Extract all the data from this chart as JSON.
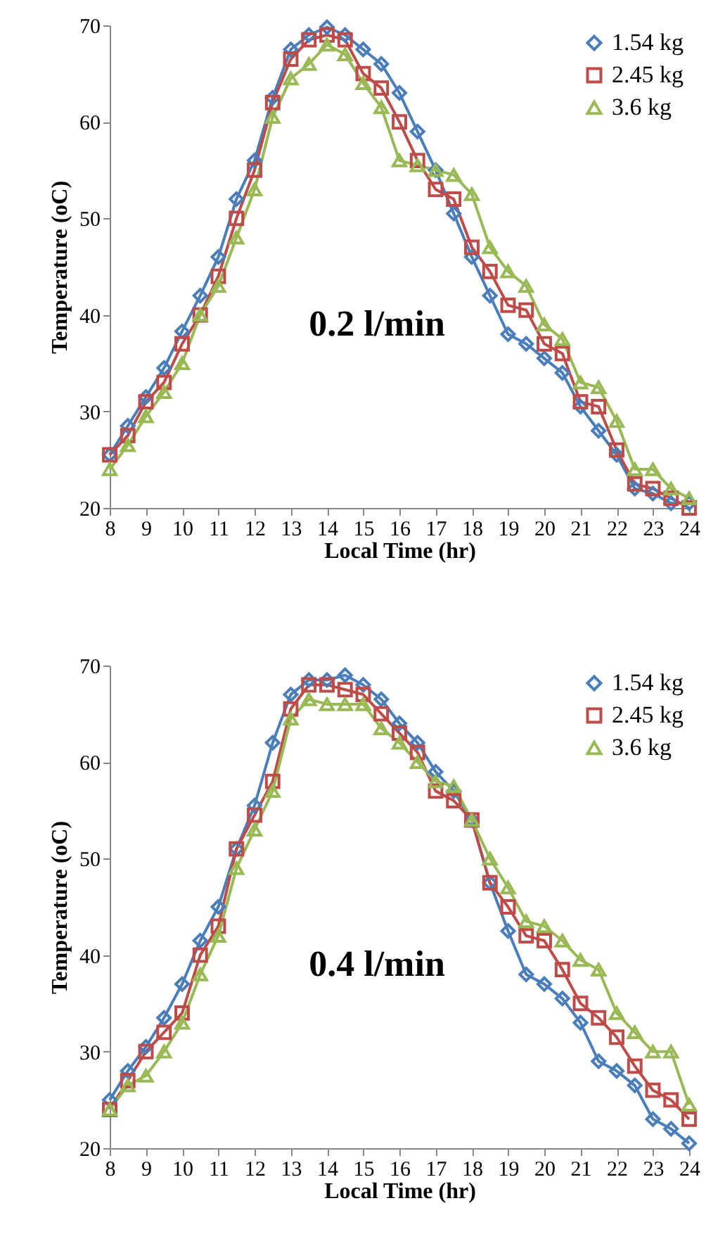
{
  "chart_data": [
    {
      "type": "line",
      "xlabel": "Local Time (hr)",
      "ylabel": "Temperature (oC)",
      "annotations": [
        "0.2 l/min"
      ],
      "x": [
        8,
        8.5,
        9,
        9.5,
        10,
        10.5,
        11,
        11.5,
        12,
        12.5,
        13,
        13.5,
        14,
        14.5,
        15,
        15.5,
        16,
        16.5,
        17,
        17.5,
        18,
        18.5,
        19,
        19.5,
        20,
        20.5,
        21,
        21.5,
        22,
        22.5,
        23,
        23.5,
        24
      ],
      "series": [
        {
          "name": "1.54 kg",
          "color": "#4a7ebb",
          "marker": "diamond",
          "values": [
            25.5,
            28.5,
            31.5,
            34.5,
            38.3,
            42,
            46,
            52,
            56,
            62.5,
            67.5,
            69,
            69.8,
            69,
            67.5,
            66,
            63,
            59,
            55,
            50.5,
            46,
            42,
            38,
            37,
            35.5,
            34,
            30.5,
            28,
            25.5,
            22,
            21.5,
            20.5,
            20.5
          ]
        },
        {
          "name": "2.45 kg",
          "color": "#be4b48",
          "marker": "square",
          "values": [
            25.5,
            27.5,
            31,
            33,
            37,
            40,
            44,
            50,
            55,
            62,
            66.5,
            68.5,
            69,
            68.5,
            65,
            63.5,
            60,
            56,
            53,
            52,
            47,
            44.5,
            41,
            40.5,
            37,
            36,
            31,
            30.5,
            26,
            22.5,
            22,
            21,
            20
          ]
        },
        {
          "name": "3.6 kg",
          "color": "#98b954",
          "marker": "triangle",
          "values": [
            24,
            26.5,
            29.5,
            32,
            35,
            40,
            43,
            48,
            53,
            60.5,
            64.5,
            66,
            68,
            67,
            64,
            61.5,
            56,
            55.5,
            55,
            54.5,
            52.5,
            47,
            44.5,
            43,
            39,
            37.5,
            33,
            32.5,
            29,
            24,
            24,
            22,
            21
          ]
        }
      ],
      "xlim": [
        8,
        24
      ],
      "xticks": [
        8,
        9,
        10,
        11,
        12,
        13,
        14,
        15,
        16,
        17,
        18,
        19,
        20,
        21,
        22,
        23,
        24
      ],
      "ylim": [
        20,
        70
      ],
      "yticks": [
        20,
        30,
        40,
        50,
        60,
        70
      ],
      "grid": false,
      "legend": "top right",
      "line_style": "solid"
    },
    {
      "type": "line",
      "xlabel": "Local Time (hr)",
      "ylabel": "Temperature (oC)",
      "annotations": [
        "0.4 l/min"
      ],
      "x": [
        8,
        8.5,
        9,
        9.5,
        10,
        10.5,
        11,
        11.5,
        12,
        12.5,
        13,
        13.5,
        14,
        14.5,
        15,
        15.5,
        16,
        16.5,
        17,
        17.5,
        18,
        18.5,
        19,
        19.5,
        20,
        20.5,
        21,
        21.5,
        22,
        22.5,
        23,
        23.5,
        24
      ],
      "series": [
        {
          "name": "1.54 kg",
          "color": "#4a7ebb",
          "marker": "diamond",
          "values": [
            25,
            28,
            30.5,
            33.5,
            37,
            41.5,
            45,
            51,
            55.5,
            62,
            67,
            68.5,
            68.5,
            69,
            68,
            66.5,
            64,
            62,
            59,
            57,
            54,
            47.5,
            42.5,
            38,
            37,
            35.5,
            33,
            29,
            28,
            26.5,
            23,
            22,
            20.5
          ]
        },
        {
          "name": "2.45 kg",
          "color": "#be4b48",
          "marker": "square",
          "values": [
            24,
            27,
            30,
            32,
            34,
            40,
            43,
            51,
            54.5,
            58,
            65.5,
            68,
            68,
            67.5,
            67,
            65,
            63,
            61,
            57,
            56,
            54,
            47.5,
            45,
            42,
            41.5,
            38.5,
            35,
            33.5,
            31.5,
            28.5,
            26,
            25,
            23
          ]
        },
        {
          "name": "3.6 kg",
          "color": "#98b954",
          "marker": "triangle",
          "values": [
            24,
            26.5,
            27.5,
            30,
            33,
            38,
            42,
            49,
            53,
            57,
            64.5,
            66.5,
            66,
            66,
            66,
            63.5,
            62,
            60,
            58,
            57.5,
            54,
            50,
            47,
            43.5,
            43,
            41.5,
            39.5,
            38.5,
            34,
            32,
            30,
            30,
            24.5
          ]
        }
      ],
      "xlim": [
        8,
        24
      ],
      "xticks": [
        8,
        9,
        10,
        11,
        12,
        13,
        14,
        15,
        16,
        17,
        18,
        19,
        20,
        21,
        22,
        23,
        24
      ],
      "ylim": [
        20,
        70
      ],
      "yticks": [
        20,
        30,
        40,
        50,
        60,
        70
      ],
      "grid": false,
      "legend": "top right",
      "line_style": "solid"
    }
  ]
}
